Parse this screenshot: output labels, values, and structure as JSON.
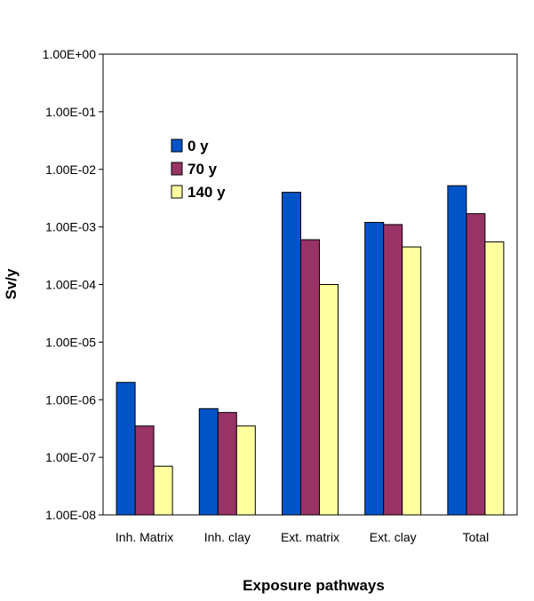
{
  "chart_data": {
    "type": "bar",
    "scale": "log",
    "ylim": [
      1e-08,
      1
    ],
    "yticks": [
      {
        "value": 1,
        "label": "1.00E+00"
      },
      {
        "value": 0.1,
        "label": "1.00E-01"
      },
      {
        "value": 0.01,
        "label": "1.00E-02"
      },
      {
        "value": 0.001,
        "label": "1.00E-03"
      },
      {
        "value": 0.0001,
        "label": "1.00E-04"
      },
      {
        "value": 1e-05,
        "label": "1.00E-05"
      },
      {
        "value": 1e-06,
        "label": "1.00E-06"
      },
      {
        "value": 1e-07,
        "label": "1.00E-07"
      },
      {
        "value": 1e-08,
        "label": "1.00E-08"
      }
    ],
    "categories": [
      "Inh. Matrix",
      "Inh. clay",
      "Ext. matrix",
      "Ext. clay",
      "Total"
    ],
    "series": [
      {
        "name": "0 y",
        "color": "#0054c8",
        "values": [
          2e-06,
          7e-07,
          0.004,
          0.0012,
          0.0052
        ]
      },
      {
        "name": "70 y",
        "color": "#993366",
        "values": [
          3.5e-07,
          6e-07,
          0.0006,
          0.0011,
          0.0017
        ]
      },
      {
        "name": "140 y",
        "color": "#ffffa0",
        "values": [
          7e-08,
          3.5e-07,
          0.0001,
          0.00045,
          0.00055
        ]
      }
    ],
    "xlabel": "Exposure pathways",
    "ylabel": "Sv/y",
    "legend_position": "upper-left-inside",
    "grid": false
  }
}
